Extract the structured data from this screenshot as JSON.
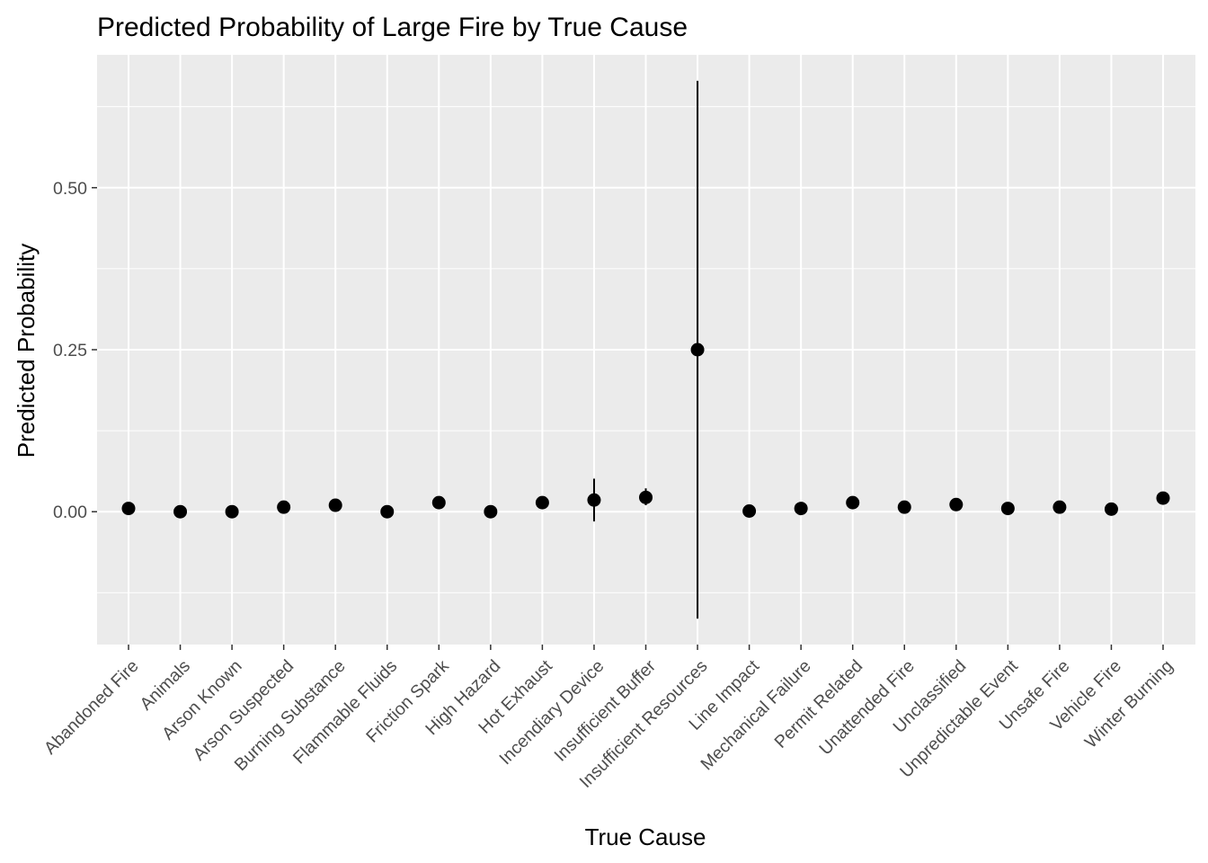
{
  "chart_data": {
    "type": "scatter",
    "title": "Predicted Probability of Large Fire by True Cause",
    "xlabel": "True Cause",
    "ylabel": "Predicted Probability",
    "ylim": [
      -0.205,
      0.705
    ],
    "y_ticks": [
      0.0,
      0.25,
      0.5
    ],
    "y_tick_labels": [
      "0.00",
      "0.25",
      "0.50"
    ],
    "grid": true,
    "legend": "none",
    "colors": {
      "panel_background": "#ebebeb",
      "grid": "#ffffff",
      "point": "#000000",
      "errorbar": "#000000"
    },
    "categories": [
      "Abandoned Fire",
      "Animals",
      "Arson Known",
      "Arson Suspected",
      "Burning Substance",
      "Flammable Fluids",
      "Friction Spark",
      "High Hazard",
      "Hot Exhaust",
      "Incendiary Device",
      "Insufficient Buffer",
      "Insufficient Resources",
      "Line Impact",
      "Mechanical Failure",
      "Permit Related",
      "Unattended Fire",
      "Unclassified",
      "Unpredictable Event",
      "Unsafe Fire",
      "Vehicle Fire",
      "Winter Burning"
    ],
    "values": [
      0.005,
      0.0,
      0.0,
      0.007,
      0.01,
      0.0,
      0.014,
      0.0,
      0.014,
      0.018,
      0.022,
      0.25,
      0.001,
      0.005,
      0.014,
      0.007,
      0.011,
      0.005,
      0.007,
      0.004,
      0.021
    ],
    "lower": [
      0.002,
      0.0,
      0.0,
      0.004,
      0.006,
      0.0,
      0.005,
      0.0,
      0.005,
      -0.015,
      0.01,
      -0.165,
      0.0,
      0.002,
      0.009,
      0.0,
      0.002,
      0.002,
      0.003,
      0.001,
      0.016
    ],
    "upper": [
      0.008,
      0.0,
      0.0,
      0.01,
      0.014,
      0.0,
      0.023,
      0.0,
      0.023,
      0.051,
      0.036,
      0.665,
      0.002,
      0.008,
      0.019,
      0.014,
      0.02,
      0.008,
      0.011,
      0.007,
      0.026
    ]
  }
}
